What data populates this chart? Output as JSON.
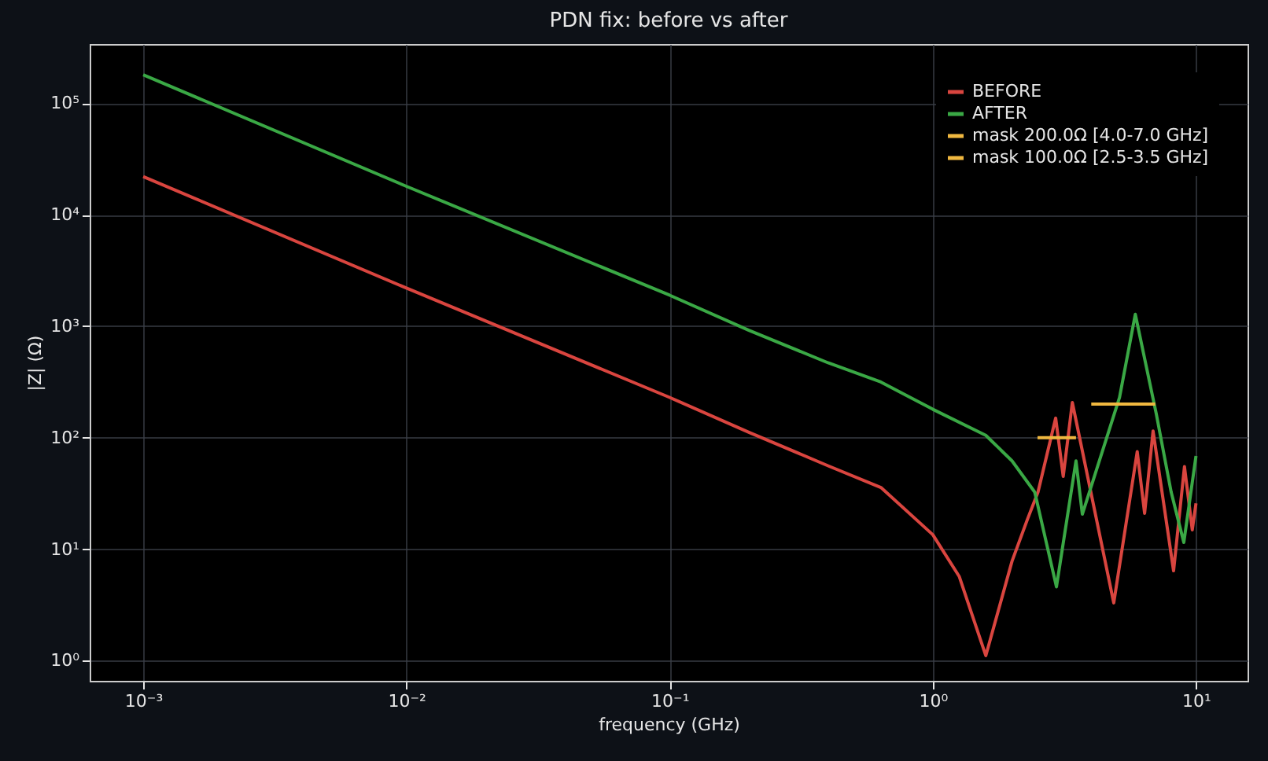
{
  "chart_data": {
    "type": "line",
    "title": "PDN fix: before vs after",
    "xlabel": "frequency (GHz)",
    "ylabel": "|Z| (Ω)",
    "log": "xy",
    "grid": true,
    "legend": "top right",
    "line_style": "solid",
    "marker": "none",
    "xlim": [
      0.000626,
      15.7
    ],
    "ylim": [
      0.66,
      340000
    ],
    "xticks": [
      {
        "value": 0.001,
        "label": "10⁻³"
      },
      {
        "value": 0.01,
        "label": "10⁻²"
      },
      {
        "value": 0.1,
        "label": "10⁻¹"
      },
      {
        "value": 1,
        "label": "10⁰"
      },
      {
        "value": 10,
        "label": "10¹"
      }
    ],
    "yticks": [
      {
        "value": 1,
        "label": "10⁰"
      },
      {
        "value": 10,
        "label": "10¹"
      },
      {
        "value": 100,
        "label": "10²"
      },
      {
        "value": 1000,
        "label": "10³"
      },
      {
        "value": 10000,
        "label": "10⁴"
      },
      {
        "value": 100000,
        "label": "10⁵"
      }
    ],
    "series": [
      {
        "name": "BEFORE",
        "color": "#d9453f",
        "x": [
          0.001,
          0.01,
          0.1,
          0.2,
          0.4,
          0.635,
          1.0,
          1.26,
          1.59,
          2.0,
          2.29,
          2.51,
          2.93,
          3.13,
          3.39,
          4.87,
          5.98,
          6.38,
          6.87,
          8.22,
          9.04,
          9.68,
          10
        ],
        "values": [
          22000,
          2200,
          230,
          112,
          56,
          35.8,
          13.5,
          5.7,
          1.11,
          7.8,
          18.6,
          32.5,
          150,
          45,
          207,
          3.3,
          75,
          21,
          115,
          6.4,
          55,
          14.9,
          25.8
        ]
      },
      {
        "name": "AFTER",
        "color": "#3aa845",
        "x": [
          0.001,
          0.01,
          0.1,
          0.2,
          0.4,
          0.635,
          1.0,
          1.59,
          2.0,
          2.44,
          2.95,
          3.5,
          3.7,
          5.12,
          5.88,
          7.06,
          8.05,
          8.99,
          10
        ],
        "values": [
          180000,
          18000,
          1900,
          920,
          470,
          316,
          180,
          105,
          62,
          32.5,
          4.6,
          62,
          20.6,
          229,
          1280,
          165,
          32.5,
          11.5,
          68.6
        ]
      },
      {
        "name": "mask 200.0Ω [4.0-7.0 GHz]",
        "color": "#f0b840",
        "x": [
          4.0,
          7.0
        ],
        "values": [
          200,
          200
        ]
      },
      {
        "name": "mask 100.0Ω [2.5-3.5 GHz]",
        "color": "#f0b840",
        "x": [
          2.5,
          3.5
        ],
        "values": [
          100,
          100
        ]
      }
    ]
  }
}
